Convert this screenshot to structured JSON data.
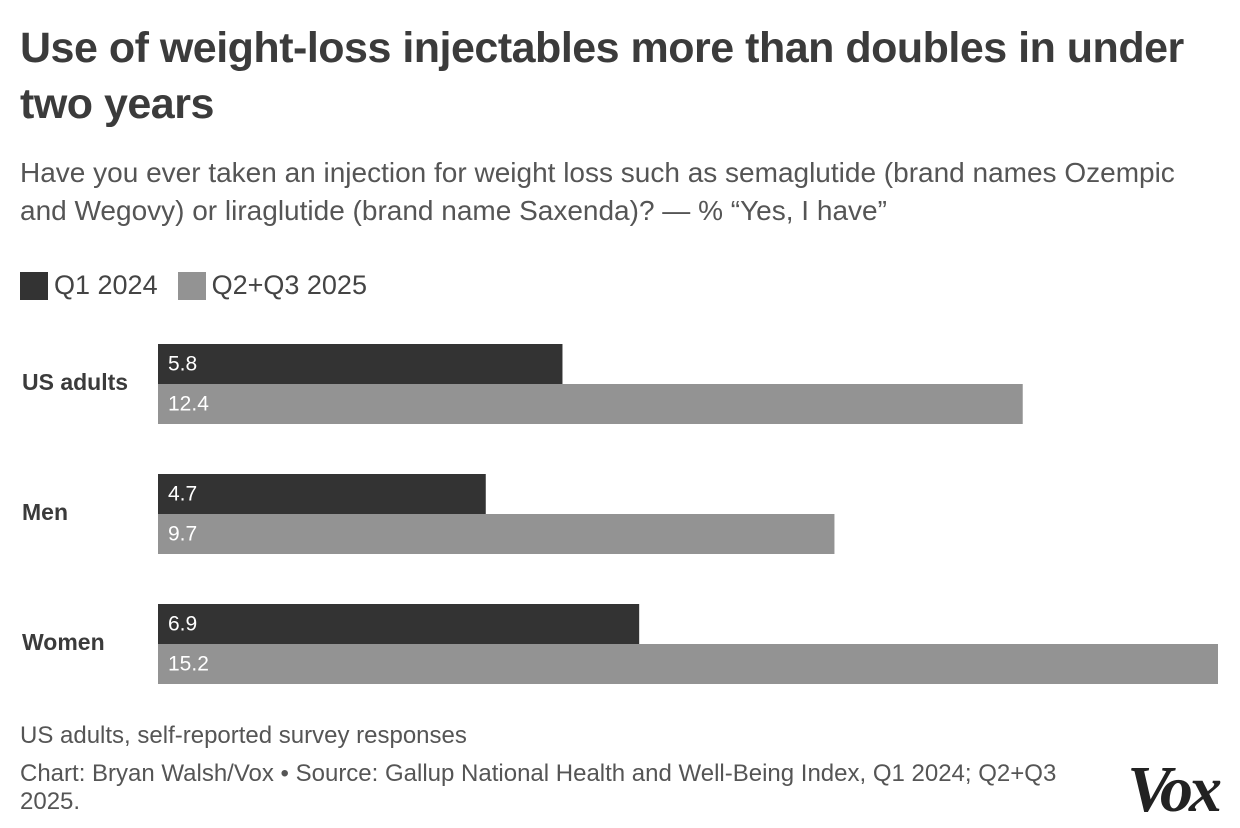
{
  "chart_data": {
    "type": "bar",
    "orientation": "horizontal",
    "title": "Use of weight-loss injectables more than doubles in under two years",
    "subtitle": "Have you ever taken an injection for weight loss such as semaglutide (brand names Ozempic and Wegovy) or liraglutide (brand name Saxenda)? — % “Yes, I have”",
    "categories": [
      "US adults",
      "Men",
      "Women"
    ],
    "series": [
      {
        "name": "Q1 2024",
        "color": "#333333",
        "values": [
          5.8,
          4.7,
          6.9
        ]
      },
      {
        "name": "Q2+Q3 2025",
        "color": "#939393",
        "values": [
          12.4,
          9.7,
          15.2
        ]
      }
    ],
    "xlim": [
      0,
      15.2
    ],
    "note": "US adults, self-reported survey responses",
    "source": "Chart: Bryan Walsh/Vox • Source: Gallup National Health and Well-Being Index, Q1 2024; Q2+Q3 2025.",
    "logo": "Vox"
  }
}
